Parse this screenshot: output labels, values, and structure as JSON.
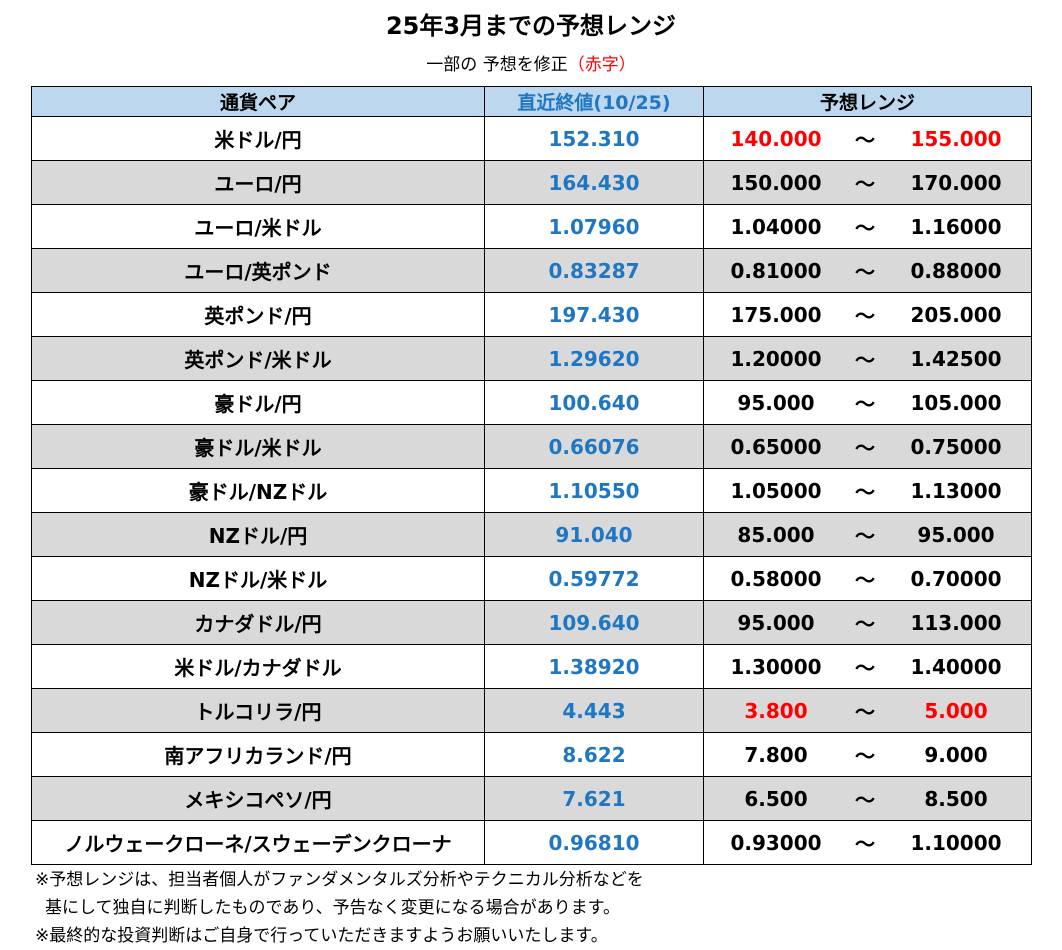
{
  "title": "25年3月までの予想レンジ",
  "subtitle": {
    "prefix": "一部の 予想を修正",
    "red": "（赤字）"
  },
  "headers": {
    "pair": "通貨ペア",
    "close": "直近終値(10/25)",
    "range": "予想レンジ"
  },
  "tilde": "～",
  "rows": [
    {
      "pair": "米ドル/円",
      "close": "152.310",
      "low": "140.000",
      "high": "155.000",
      "revised": true
    },
    {
      "pair": "ユーロ/円",
      "close": "164.430",
      "low": "150.000",
      "high": "170.000",
      "revised": false
    },
    {
      "pair": "ユーロ/米ドル",
      "close": "1.07960",
      "low": "1.04000",
      "high": "1.16000",
      "revised": false
    },
    {
      "pair": "ユーロ/英ポンド",
      "close": "0.83287",
      "low": "0.81000",
      "high": "0.88000",
      "revised": false
    },
    {
      "pair": "英ポンド/円",
      "close": "197.430",
      "low": "175.000",
      "high": "205.000",
      "revised": false
    },
    {
      "pair": "英ポンド/米ドル",
      "close": "1.29620",
      "low": "1.20000",
      "high": "1.42500",
      "revised": false
    },
    {
      "pair": "豪ドル/円",
      "close": "100.640",
      "low": "95.000",
      "high": "105.000",
      "revised": false
    },
    {
      "pair": "豪ドル/米ドル",
      "close": "0.66076",
      "low": "0.65000",
      "high": "0.75000",
      "revised": false
    },
    {
      "pair": "豪ドル/NZドル",
      "close": "1.10550",
      "low": "1.05000",
      "high": "1.13000",
      "revised": false
    },
    {
      "pair": "NZドル/円",
      "close": "91.040",
      "low": "85.000",
      "high": "95.000",
      "revised": false
    },
    {
      "pair": "NZドル/米ドル",
      "close": "0.59772",
      "low": "0.58000",
      "high": "0.70000",
      "revised": false
    },
    {
      "pair": "カナダドル/円",
      "close": "109.640",
      "low": "95.000",
      "high": "113.000",
      "revised": false
    },
    {
      "pair": "米ドル/カナダドル",
      "close": "1.38920",
      "low": "1.30000",
      "high": "1.40000",
      "revised": false
    },
    {
      "pair": "トルコリラ/円",
      "close": "4.443",
      "low": "3.800",
      "high": "5.000",
      "revised": true
    },
    {
      "pair": "南アフリカランド/円",
      "close": "8.622",
      "low": "7.800",
      "high": "9.000",
      "revised": false
    },
    {
      "pair": "メキシコペソ/円",
      "close": "7.621",
      "low": "6.500",
      "high": "8.500",
      "revised": false
    },
    {
      "pair": "ノルウェークローネ/スウェーデンクローナ",
      "close": "0.96810",
      "low": "0.93000",
      "high": "1.10000",
      "revised": false
    }
  ],
  "notes": [
    "※予想レンジは、担当者個人がファンダメンタルズ分析やテクニカル分析などを",
    "基にして独自に判断したものであり、予告なく変更になる場合があります。",
    "※最終的な投資判断はご自身で行っていただきますようお願いいたします。"
  ],
  "colors": {
    "header_bg": "#bdd7ee",
    "alt_row_bg": "#d9d9d9",
    "close_text": "#1f77c4",
    "revised_text": "#ff0000"
  }
}
